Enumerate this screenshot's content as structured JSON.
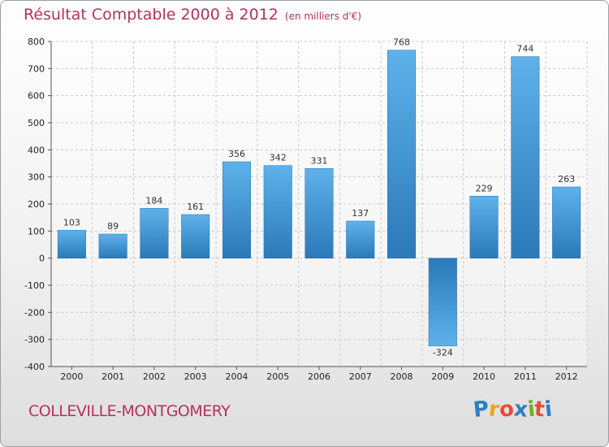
{
  "chart_data": {
    "type": "bar",
    "title": "Résultat Comptable 2000 à 2012",
    "subtitle": "(en milliers d'€)",
    "categories": [
      "2000",
      "2001",
      "2002",
      "2003",
      "2004",
      "2005",
      "2006",
      "2007",
      "2008",
      "2009",
      "2010",
      "2011",
      "2012"
    ],
    "values": [
      103,
      89,
      184,
      161,
      356,
      342,
      331,
      137,
      768,
      -324,
      229,
      744,
      263
    ],
    "ylim": [
      -400,
      800
    ],
    "yticks": [
      -400,
      -300,
      -200,
      -100,
      0,
      100,
      200,
      300,
      400,
      500,
      600,
      700,
      800
    ],
    "grid": true,
    "xlabel": "",
    "ylabel": "",
    "colors": {
      "bar_light": "#5eb2ea",
      "bar_dark": "#2a79b9",
      "accent": "#b5325b"
    }
  },
  "footer": {
    "commune": "COLLEVILLE-MONTGOMERY"
  },
  "logo": {
    "letters": [
      "P",
      "r",
      "o",
      "x",
      "i",
      "t",
      "i"
    ],
    "colors": [
      "#2d7fc4",
      "#f0a21a",
      "#e84b37",
      "#2d7fc4",
      "#6aaf2a",
      "#e84b37",
      "#2d7fc4"
    ]
  }
}
